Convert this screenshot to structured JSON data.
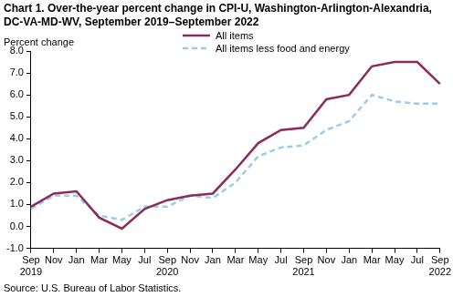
{
  "chart_data": {
    "type": "line",
    "title": "Chart 1. Over-the-year percent change in CPI-U, Washington-Arlington-Alexandria, DC-VA-MD-WV,  September 2019–September 2022",
    "y_label": "Percent change",
    "source": "Source: U.S. Bureau of Labor Statistics.",
    "categories": [
      "Sep 2019",
      "Nov",
      "Jan",
      "Mar",
      "May",
      "Jul",
      "Sep 2020",
      "Nov",
      "Jan",
      "Mar",
      "May",
      "Jul",
      "Sep 2021",
      "Nov",
      "Jan",
      "Mar",
      "May",
      "Jul",
      "Sep 2022"
    ],
    "series": [
      {
        "name": "All items",
        "color": "#8b2c5c",
        "line_style": "solid",
        "values": [
          0.9,
          1.5,
          1.6,
          0.4,
          -0.1,
          0.8,
          1.2,
          1.4,
          1.5,
          2.6,
          3.8,
          4.4,
          4.5,
          5.8,
          6.0,
          7.3,
          7.5,
          7.5,
          6.5
        ]
      },
      {
        "name": "All items less food and energy",
        "color": "#9dcbf0",
        "line_style": "dashed",
        "values": [
          0.8,
          1.4,
          1.4,
          0.5,
          0.3,
          0.9,
          0.9,
          1.4,
          1.3,
          2.0,
          3.2,
          3.6,
          3.7,
          4.4,
          4.8,
          6.0,
          5.7,
          5.6,
          5.6
        ]
      }
    ],
    "ylim": [
      -1,
      8
    ],
    "yticks": [
      {
        "value": -1,
        "label": "-1.0"
      },
      {
        "value": 0,
        "label": "0.0"
      },
      {
        "value": 1,
        "label": "1.0"
      },
      {
        "value": 2,
        "label": "2.0"
      },
      {
        "value": 3,
        "label": "3.0"
      },
      {
        "value": 4,
        "label": "4.0"
      },
      {
        "value": 5,
        "label": "5.0"
      },
      {
        "value": 6,
        "label": "6.0"
      },
      {
        "value": 7,
        "label": "7.0"
      },
      {
        "value": 8,
        "label": "8.0"
      }
    ],
    "grid": false,
    "legend": "top"
  }
}
